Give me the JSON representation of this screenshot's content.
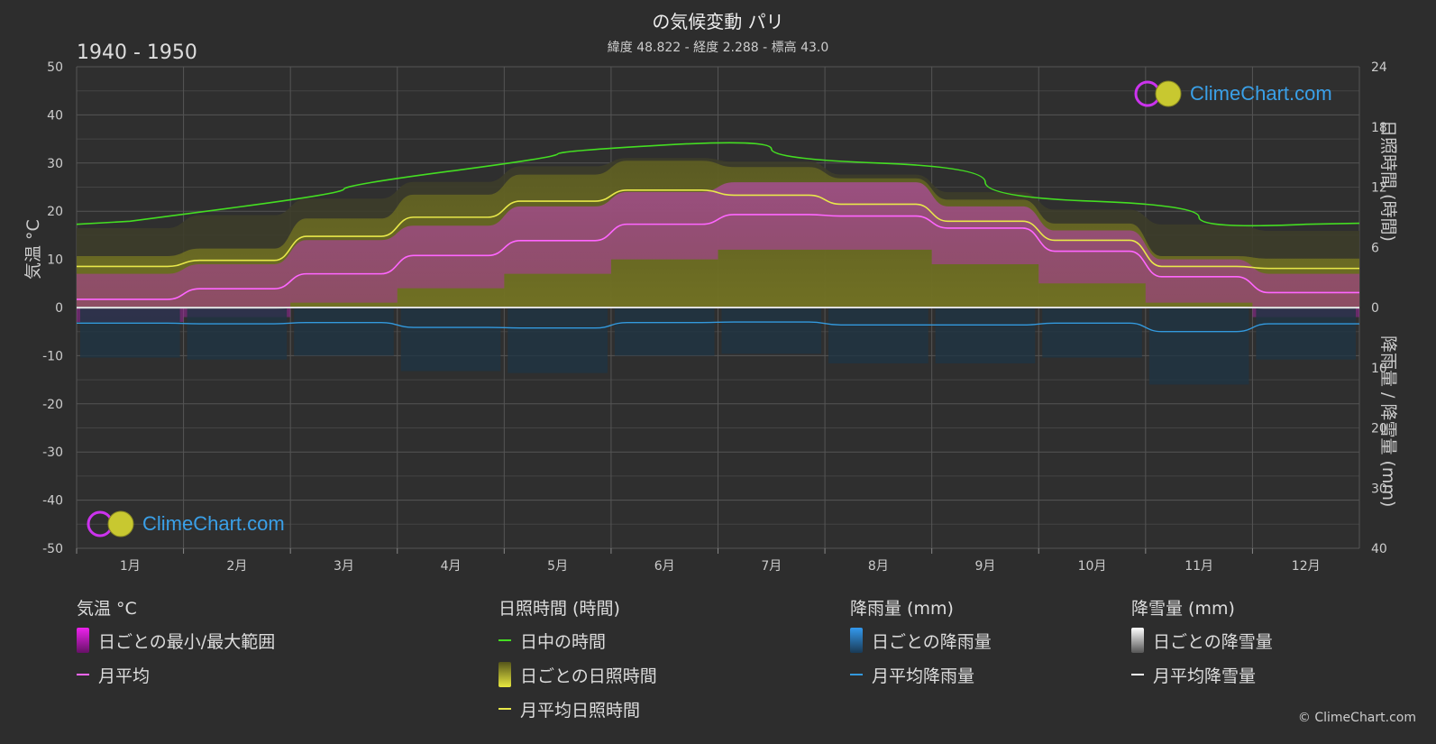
{
  "title": "の気候変動 パリ",
  "subtitle": "緯度 48.822 - 経度 2.288 - 標高 43.0",
  "period": "1940 - 1950",
  "axes": {
    "left_title": "気温 °C",
    "right_top_title": "日照時間 (時間)",
    "right_bottom_title": "降雨量 / 降雪量 (mm)",
    "left_ticks": [
      "50",
      "40",
      "30",
      "20",
      "10",
      "0",
      "-10",
      "-20",
      "-30",
      "-40",
      "-50"
    ],
    "right_top_ticks": [
      "24",
      "18",
      "12",
      "6",
      "0"
    ],
    "right_bottom_ticks": [
      "10",
      "20",
      "30",
      "40"
    ],
    "months": [
      "1月",
      "2月",
      "3月",
      "4月",
      "5月",
      "6月",
      "7月",
      "8月",
      "9月",
      "10月",
      "11月",
      "12月"
    ]
  },
  "chart_data": {
    "type": "line",
    "x": [
      "1月",
      "2月",
      "3月",
      "4月",
      "5月",
      "6月",
      "7月",
      "8月",
      "9月",
      "10月",
      "11月",
      "12月"
    ],
    "temperature_ylim": [
      -50,
      50
    ],
    "sunshine_ylim": [
      0,
      24
    ],
    "precipitation_ylim": [
      0,
      40
    ],
    "series": [
      {
        "name": "日中の時間",
        "axis": "sunshine",
        "color": "#44dd22",
        "values": [
          8.6,
          10.0,
          11.8,
          13.6,
          15.3,
          16.2,
          15.8,
          14.4,
          12.5,
          10.6,
          9.0,
          8.3
        ]
      },
      {
        "name": "月平均日照時間",
        "axis": "sunshine",
        "color": "#e8e84a",
        "values": [
          4.1,
          4.7,
          7.1,
          9.0,
          10.6,
          11.7,
          11.2,
          10.3,
          8.6,
          6.7,
          4.1,
          3.9
        ]
      },
      {
        "name": "月平均",
        "axis": "temperature",
        "color": "#ff66ff",
        "values": [
          1.7,
          3.9,
          7.0,
          10.8,
          13.9,
          17.3,
          19.3,
          19.0,
          16.5,
          11.7,
          6.4,
          3.1
        ]
      },
      {
        "name": "月平均降雨量",
        "axis": "precipitation",
        "color": "#3399dd",
        "values": [
          2.6,
          2.7,
          2.5,
          3.3,
          3.4,
          2.5,
          2.4,
          2.9,
          2.9,
          2.6,
          4.0,
          2.7
        ]
      },
      {
        "name": "月平均降雪量",
        "axis": "precipitation",
        "color": "#ffffff",
        "values": [
          0.1,
          0.1,
          0.0,
          0.0,
          0.0,
          0.0,
          0.0,
          0.0,
          0.0,
          0.0,
          0.0,
          0.1
        ]
      }
    ],
    "temperature_daily_range": {
      "name": "日ごとの最小/最大範囲",
      "min": [
        -3,
        -2,
        1,
        4,
        7,
        10,
        12,
        12,
        9,
        5,
        1,
        -2
      ],
      "max": [
        7,
        9,
        14,
        17,
        21,
        24,
        26,
        26,
        21,
        16,
        10,
        7
      ]
    },
    "grid": true
  },
  "legend": {
    "temp_head": "気温 °C",
    "temp_range": "日ごとの最小/最大範囲",
    "temp_avg": "月平均",
    "sun_head": "日照時間 (時間)",
    "sun_daylight": "日中の時間",
    "sun_daily": "日ごとの日照時間",
    "sun_avg": "月平均日照時間",
    "rain_head": "降雨量 (mm)",
    "rain_daily": "日ごとの降雨量",
    "rain_avg": "月平均降雨量",
    "snow_head": "降雪量 (mm)",
    "snow_daily": "日ごとの降雪量",
    "snow_avg": "月平均降雪量"
  },
  "logo_text": "ClimeChart.com",
  "copyright": "© ClimeChart.com",
  "colors": {
    "background": "#2d2d2d",
    "grid": "#555555",
    "daylight": "#44dd22",
    "sunshine": "#e8e84a",
    "temp_avg": "#ff66ff",
    "temp_range": "#dd22dd",
    "rain": "#3399dd",
    "snow": "#ffffff"
  }
}
